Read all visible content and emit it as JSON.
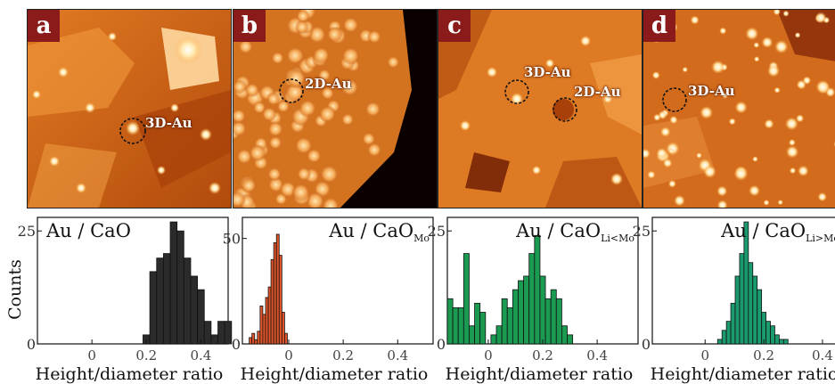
{
  "figure": {
    "y_label": "Counts",
    "panels": [
      {
        "label": "a",
        "annotations": [
          "3D-Au"
        ],
        "title": "Au / CaO",
        "title_sub": "",
        "color": "#2b2b2b"
      },
      {
        "label": "b",
        "annotations": [
          "2D-Au"
        ],
        "title": "Au / CaO",
        "title_sub": "Mo",
        "color": "#e0562a"
      },
      {
        "label": "c",
        "annotations": [
          "3D-Au",
          "2D-Au"
        ],
        "title": "Au / CaO",
        "title_sub": "Li<Mo",
        "color": "#1b9a52"
      },
      {
        "label": "d",
        "annotations": [
          "3D-Au"
        ],
        "title": "Au / CaO",
        "title_sub": "Li>Mo",
        "color": "#1b9a6e"
      }
    ]
  },
  "chart_data": [
    {
      "type": "bar",
      "title": "Au / CaO",
      "xlabel": "Height/diameter ratio",
      "ylabel": "Counts",
      "xlim": [
        -0.2,
        0.5
      ],
      "ylim": [
        0,
        28
      ],
      "xticks": [
        "0",
        "0.2",
        "0.4"
      ],
      "yticks": [
        "0",
        "25"
      ],
      "bin_width": 0.025,
      "x": [
        0.2,
        0.225,
        0.25,
        0.275,
        0.3,
        0.325,
        0.35,
        0.375,
        0.4,
        0.425,
        0.45,
        0.475,
        0.5
      ],
      "values": [
        2,
        16,
        19,
        20,
        27,
        25,
        19,
        15,
        12,
        5,
        2,
        5,
        5
      ],
      "color": "#2b2b2b"
    },
    {
      "type": "bar",
      "title": "Au / CaO_Mo",
      "xlabel": "Height/diameter ratio",
      "ylabel": "",
      "xlim": [
        -0.17,
        0.53
      ],
      "ylim": [
        0,
        60
      ],
      "xticks": [
        "0",
        "0.2",
        "0.4"
      ],
      "yticks": [
        "0",
        "50"
      ],
      "bin_width": 0.01,
      "x": [
        -0.14,
        -0.13,
        -0.12,
        -0.11,
        -0.1,
        -0.09,
        -0.08,
        -0.07,
        -0.06,
        -0.05,
        -0.04,
        -0.03,
        -0.02,
        -0.01
      ],
      "values": [
        3,
        5,
        2,
        6,
        18,
        14,
        22,
        27,
        40,
        48,
        52,
        42,
        15,
        5
      ],
      "color": "#e0562a"
    },
    {
      "type": "bar",
      "title": "Au / CaO_Li<Mo",
      "xlabel": "Height/diameter ratio",
      "ylabel": "",
      "xlim": [
        -0.15,
        0.55
      ],
      "ylim": [
        0,
        28
      ],
      "xticks": [
        "0",
        "0.2",
        "0.4"
      ],
      "yticks": [
        "0",
        "25"
      ],
      "bin_width": 0.02,
      "x": [
        -0.14,
        -0.12,
        -0.1,
        -0.08,
        -0.06,
        -0.04,
        -0.02,
        0.02,
        0.04,
        0.06,
        0.08,
        0.1,
        0.12,
        0.14,
        0.16,
        0.18,
        0.2,
        0.22,
        0.24,
        0.26,
        0.28,
        0.3
      ],
      "values": [
        10,
        8,
        8,
        20,
        4,
        9,
        7,
        2,
        4,
        10,
        8,
        12,
        14,
        15,
        20,
        24,
        15,
        10,
        12,
        10,
        4,
        2
      ],
      "color": "#1b9a52"
    },
    {
      "type": "bar",
      "title": "Au / CaO_Li>Mo",
      "xlabel": "Height/diameter ratio",
      "ylabel": "",
      "xlim": [
        -0.18,
        0.47
      ],
      "ylim": [
        0,
        28
      ],
      "xticks": [
        "0",
        "0.2",
        "0.4"
      ],
      "yticks": [
        "0",
        "25"
      ],
      "bin_width": 0.015,
      "x": [
        0.05,
        0.065,
        0.08,
        0.095,
        0.11,
        0.125,
        0.14,
        0.155,
        0.17,
        0.185,
        0.2,
        0.215,
        0.23,
        0.245,
        0.26,
        0.275
      ],
      "values": [
        1,
        3,
        5,
        9,
        15,
        20,
        27,
        18,
        15,
        12,
        7,
        5,
        4,
        2,
        1,
        1
      ],
      "color": "#1b9a6e"
    }
  ]
}
